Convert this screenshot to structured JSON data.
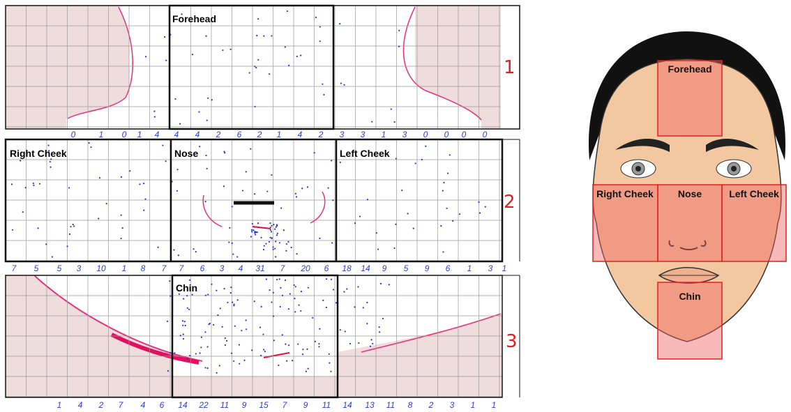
{
  "panels": [
    {
      "row_label": "1",
      "regions": [
        "Forehead"
      ],
      "counts": [
        0,
        1,
        0,
        1,
        4,
        4,
        4,
        2,
        6,
        2,
        1,
        4,
        2,
        3,
        3,
        1,
        3,
        0,
        0,
        0,
        0
      ]
    },
    {
      "row_label": "2",
      "regions": [
        "Right Cheek",
        "Nose",
        "Left Cheek"
      ],
      "counts": [
        7,
        5,
        5,
        3,
        10,
        1,
        8,
        7,
        7,
        6,
        3,
        4,
        31,
        7,
        20,
        6,
        18,
        14,
        9,
        5,
        9,
        6,
        1,
        3,
        1
      ]
    },
    {
      "row_label": "3",
      "regions": [
        "Chin"
      ],
      "counts": [
        1,
        4,
        2,
        7,
        4,
        6,
        14,
        22,
        11,
        9,
        15,
        7,
        9,
        11,
        14,
        13,
        11,
        8,
        2,
        3,
        1,
        1
      ]
    }
  ],
  "face": {
    "regions": [
      "Forehead",
      "Right Cheek",
      "Nose",
      "Left Cheek",
      "Chin"
    ]
  }
}
